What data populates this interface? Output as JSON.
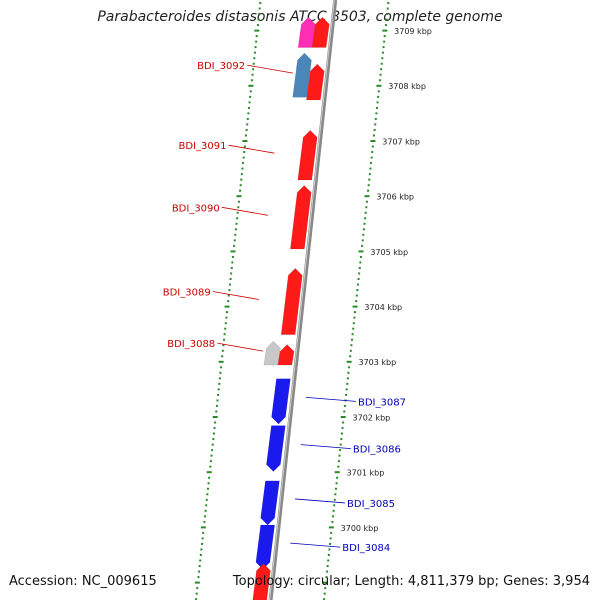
{
  "title": "Parabacteroides distasonis ATCC 8503, complete genome",
  "footer": {
    "accession": "Accession: NC_009615",
    "summary": "Topology: circular; Length: 4,811,379 bp; Genes: 3,954"
  },
  "ruler": {
    "unit_label": "kbp",
    "ticks": [
      {
        "pos_kbp": 3709,
        "label": "3709 kbp"
      },
      {
        "pos_kbp": 3708,
        "label": "3708 kbp"
      },
      {
        "pos_kbp": 3707,
        "label": "3707 kbp"
      },
      {
        "pos_kbp": 3706,
        "label": "3706 kbp"
      },
      {
        "pos_kbp": 3705,
        "label": "3705 kbp"
      },
      {
        "pos_kbp": 3704,
        "label": "3704 kbp"
      },
      {
        "pos_kbp": 3703,
        "label": "3703 kbp"
      },
      {
        "pos_kbp": 3702,
        "label": "3702 kbp"
      },
      {
        "pos_kbp": 3701,
        "label": "3701 kbp"
      },
      {
        "pos_kbp": 3700,
        "label": "3700 kbp"
      }
    ]
  },
  "colors": {
    "forward_gene": "#ff1a1a",
    "reverse_gene": "#1a1aee",
    "pink_gene": "#ff2eb4",
    "steelblue_gene": "#4a86b8",
    "grey_gene": "#c8c8c8",
    "backbone": "#888888",
    "tick_dots": "#2a8a2a",
    "forward_label": "#cc0000",
    "reverse_label": "#0000bb"
  },
  "genes": [
    {
      "id": "g-pink",
      "start_kbp": 3709.25,
      "end_kbp": 3708.7,
      "strand": "+",
      "track": "outer",
      "color": "pink"
    },
    {
      "id": "g-top-red",
      "start_kbp": 3709.25,
      "end_kbp": 3708.7,
      "strand": "+",
      "track": "inner",
      "color": "forward"
    },
    {
      "id": "g-3092",
      "label": "BDI_3092",
      "start_kbp": 3708.6,
      "end_kbp": 3707.8,
      "strand": "+",
      "track": "outer",
      "color": "steelblue"
    },
    {
      "id": "g-3092b",
      "start_kbp": 3708.4,
      "end_kbp": 3707.75,
      "strand": "+",
      "track": "inner",
      "color": "forward"
    },
    {
      "id": "g-3091",
      "label": "BDI_3091",
      "start_kbp": 3707.2,
      "end_kbp": 3706.3,
      "strand": "+",
      "track": "inner",
      "color": "forward"
    },
    {
      "id": "g-3090",
      "label": "BDI_3090",
      "start_kbp": 3706.2,
      "end_kbp": 3705.05,
      "strand": "+",
      "track": "inner",
      "color": "forward"
    },
    {
      "id": "g-3089",
      "label": "BDI_3089",
      "start_kbp": 3704.7,
      "end_kbp": 3703.5,
      "strand": "+",
      "track": "inner",
      "color": "forward"
    },
    {
      "id": "g-3088",
      "label": "BDI_3088",
      "start_kbp": 3703.38,
      "end_kbp": 3702.95,
      "strand": "+",
      "track": "outer",
      "color": "grey"
    },
    {
      "id": "g-3088b",
      "start_kbp": 3703.32,
      "end_kbp": 3702.95,
      "strand": "+",
      "track": "inner",
      "color": "forward"
    },
    {
      "id": "g-3087",
      "label": "BDI_3087",
      "start_kbp": 3702.7,
      "end_kbp": 3701.88,
      "strand": "-",
      "track": "inner",
      "color": "reverse"
    },
    {
      "id": "g-3086",
      "label": "BDI_3086",
      "start_kbp": 3701.85,
      "end_kbp": 3701.02,
      "strand": "-",
      "track": "inner",
      "color": "reverse"
    },
    {
      "id": "g-3085",
      "label": "BDI_3085",
      "start_kbp": 3700.85,
      "end_kbp": 3700.05,
      "strand": "-",
      "track": "inner",
      "color": "reverse"
    },
    {
      "id": "g-3084",
      "label": "BDI_3084",
      "start_kbp": 3700.05,
      "end_kbp": 3699.25,
      "strand": "-",
      "track": "inner",
      "color": "reverse"
    },
    {
      "id": "g-bottom-red",
      "start_kbp": 3699.35,
      "end_kbp": 3698.5,
      "strand": "+",
      "track": "inner",
      "color": "forward"
    }
  ]
}
